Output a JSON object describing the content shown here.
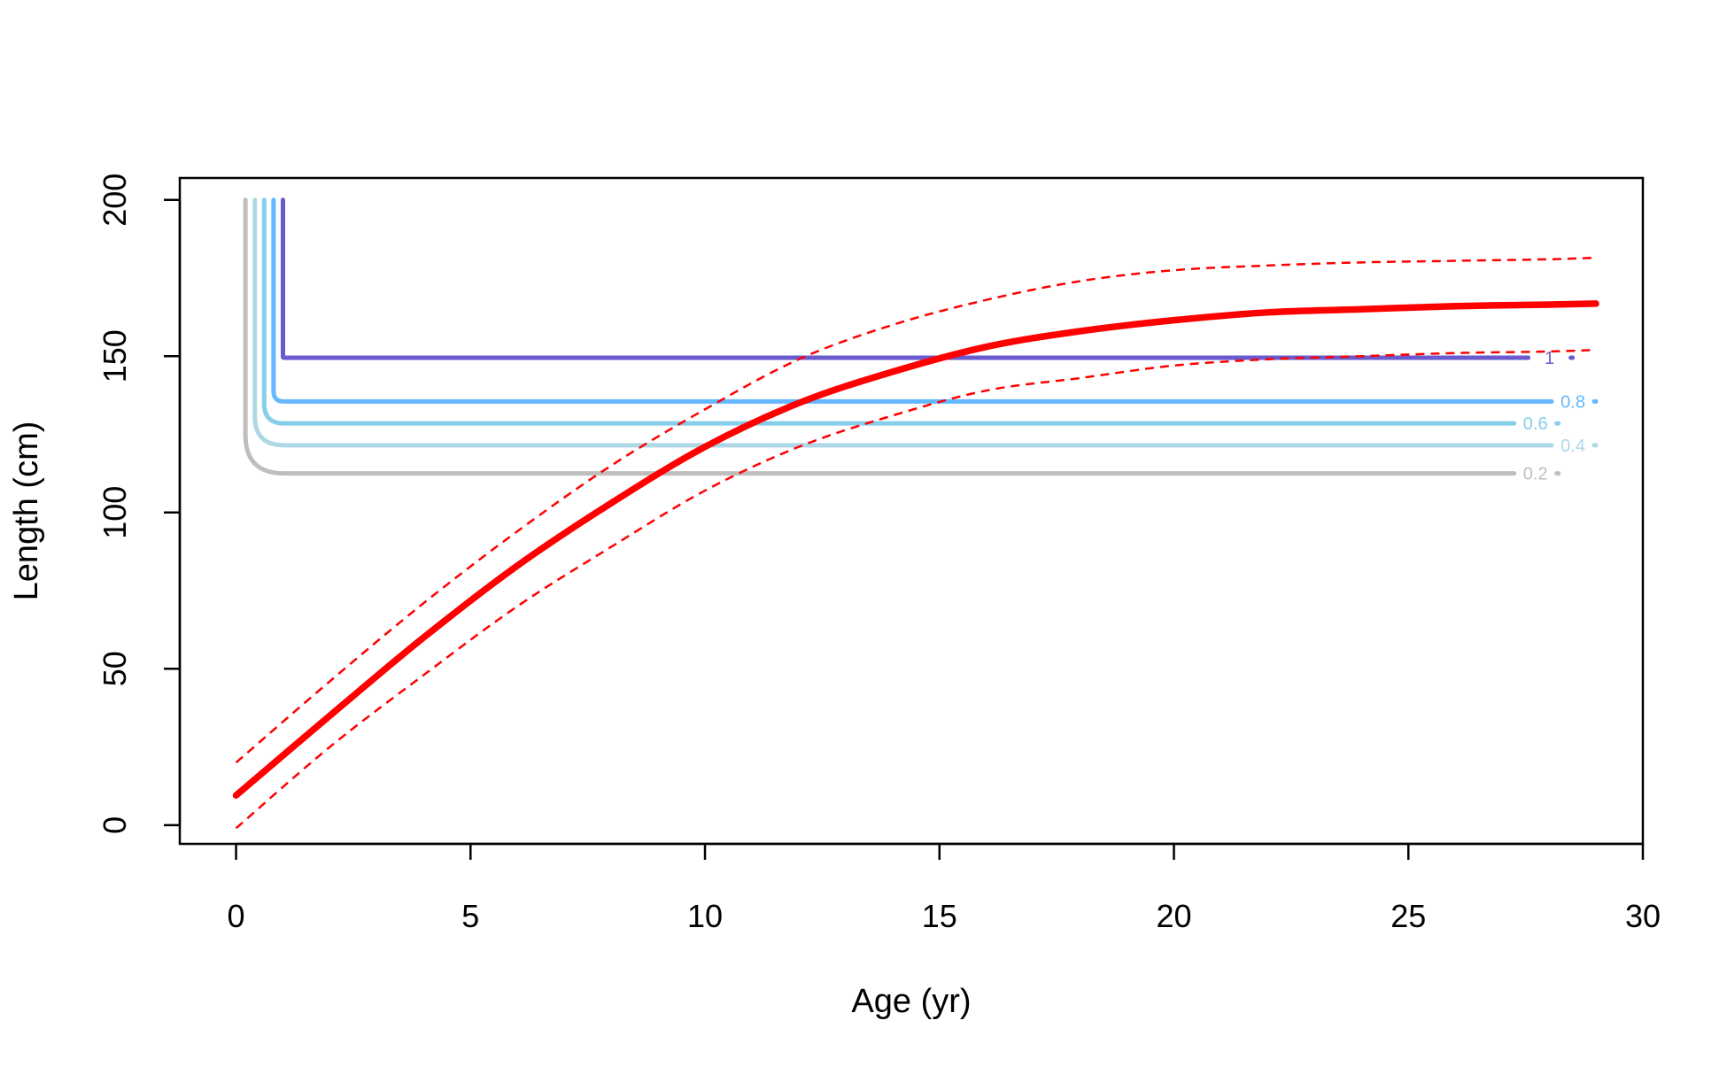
{
  "chart_data": {
    "type": "line",
    "title": "",
    "xlabel": "Age (yr)",
    "ylabel": "Length (cm)",
    "xlim": [
      -1.2,
      30
    ],
    "ylim": [
      -6,
      207
    ],
    "xticks": [
      0,
      5,
      10,
      15,
      20,
      25,
      30
    ],
    "yticks": [
      0,
      50,
      100,
      150,
      200
    ],
    "grid": false,
    "legend": "none",
    "growth_curve": {
      "color": "#ff0000",
      "x": [
        0,
        2,
        4,
        6,
        8,
        10,
        12,
        14,
        16,
        18,
        20,
        22,
        24,
        26,
        28,
        29
      ],
      "mean": [
        9.5,
        35,
        60,
        83,
        103,
        121,
        135,
        145,
        153,
        158,
        161.5,
        164,
        165,
        166,
        166.5,
        166.8
      ],
      "lower": [
        -1,
        25,
        48,
        70,
        89,
        107,
        121,
        131,
        139,
        143,
        147,
        149,
        150,
        151,
        151.5,
        152
      ],
      "upper": [
        20,
        46,
        71,
        94,
        115,
        133,
        149,
        160,
        168,
        174,
        177.5,
        179,
        180,
        180.5,
        181,
        181.5
      ]
    },
    "contours": [
      {
        "level": "0.2",
        "color": "#bebebe",
        "vx": 0.2,
        "y": 112.5,
        "x_end": 28.2
      },
      {
        "level": "0.4",
        "color": "#add8e6",
        "vx": 0.4,
        "y": 121.5,
        "x_end": 29
      },
      {
        "level": "0.6",
        "color": "#87ceeb",
        "vx": 0.6,
        "y": 128.5,
        "x_end": 28.2
      },
      {
        "level": "0.8",
        "color": "#63b8ff",
        "vx": 0.8,
        "y": 135.5,
        "x_end": 29
      },
      {
        "level": "1",
        "color": "#6a5acd",
        "vx": 1.0,
        "y": 149.5,
        "x_end": 28.5
      }
    ]
  }
}
